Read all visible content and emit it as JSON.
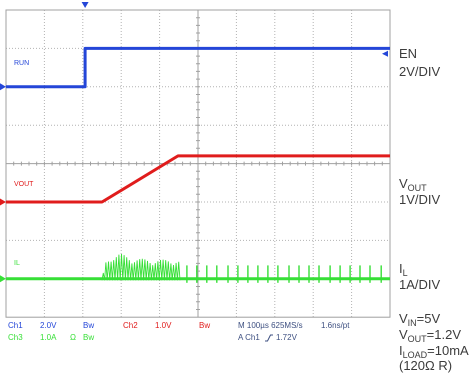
{
  "colors": {
    "ch1": "#2446d8",
    "ch2": "#e01c1c",
    "ch3": "#36df36",
    "status_text": "#3d4f80",
    "annotation_text": "#3c3c3c",
    "grid": "#a6a6a6"
  },
  "chart_data": {
    "type": "line",
    "grid": true,
    "xlim": [
      -206,
      794
    ],
    "trigger": {
      "time": 0,
      "level": 1.72
    },
    "series": [
      {
        "name": "RUN",
        "channel": "Ch1",
        "scale": "2.0V",
        "ylim": [
          -12,
          4
        ],
        "points": [
          [
            -206,
            0
          ],
          [
            0,
            0
          ],
          [
            0,
            2.0
          ],
          [
            794,
            2.0
          ]
        ]
      },
      {
        "name": "VOUT",
        "channel": "Ch2",
        "scale": "1.0V",
        "ylim": [
          -3,
          5
        ],
        "points": [
          [
            -206,
            0
          ],
          [
            44,
            0
          ],
          [
            242,
            1.2
          ],
          [
            794,
            1.2
          ]
        ]
      },
      {
        "name": "IL",
        "channel": "Ch3",
        "scale": "1.0A",
        "ylim": [
          -1,
          7
        ],
        "points": [
          [
            -206,
            0
          ],
          [
            794,
            0
          ]
        ],
        "burst_envelope": [
          [
            44,
            0
          ],
          [
            54,
            0.45
          ],
          [
            70,
            0.62
          ],
          [
            91,
            0.66
          ],
          [
            122,
            0.55
          ],
          [
            169,
            0.5
          ],
          [
            242,
            0.5
          ],
          [
            250,
            0.4
          ]
        ],
        "pulses": [
          [
            265,
            0.35
          ],
          [
            291,
            0.35
          ],
          [
            317,
            0.35
          ],
          [
            343,
            0.35
          ],
          [
            372,
            0.35
          ],
          [
            398,
            0.35
          ],
          [
            424,
            0.35
          ],
          [
            450,
            0.35
          ],
          [
            476,
            0.35
          ],
          [
            502,
            0.35
          ],
          [
            531,
            0.35
          ],
          [
            557,
            0.35
          ],
          [
            583,
            0.35
          ],
          [
            609,
            0.35
          ],
          [
            638,
            0.35
          ],
          [
            664,
            0.35
          ],
          [
            690,
            0.35
          ],
          [
            716,
            0.35
          ],
          [
            742,
            0.35
          ],
          [
            771,
            0.35
          ]
        ]
      }
    ]
  },
  "scope_status": {
    "bandwidth_limit": "Bw",
    "ch3_termination": "Ω",
    "timebase": "M 100µs 625MS/s",
    "resolution": "1.6ns/pt",
    "trigger_source": "A Ch1",
    "trigger_slope_icon": "rising-edge-icon",
    "trigger_level": "1.72V"
  },
  "annotations": {
    "en_label": "EN",
    "en_scale": "2V/DIV",
    "vout_label": "V",
    "vout_sub": "OUT",
    "vout_scale": "1V/DIV",
    "il_label": "I",
    "il_sub": "L",
    "il_scale": "1A/DIV"
  },
  "conditions": [
    {
      "sym": "V",
      "sub": "IN",
      "value": "=5V"
    },
    {
      "sym": "V",
      "sub": "OUT",
      "value": "=1.2V"
    },
    {
      "sym": "I",
      "sub": "LOAD",
      "value": "=10mA"
    }
  ],
  "conditions_note": "(120Ω R)"
}
